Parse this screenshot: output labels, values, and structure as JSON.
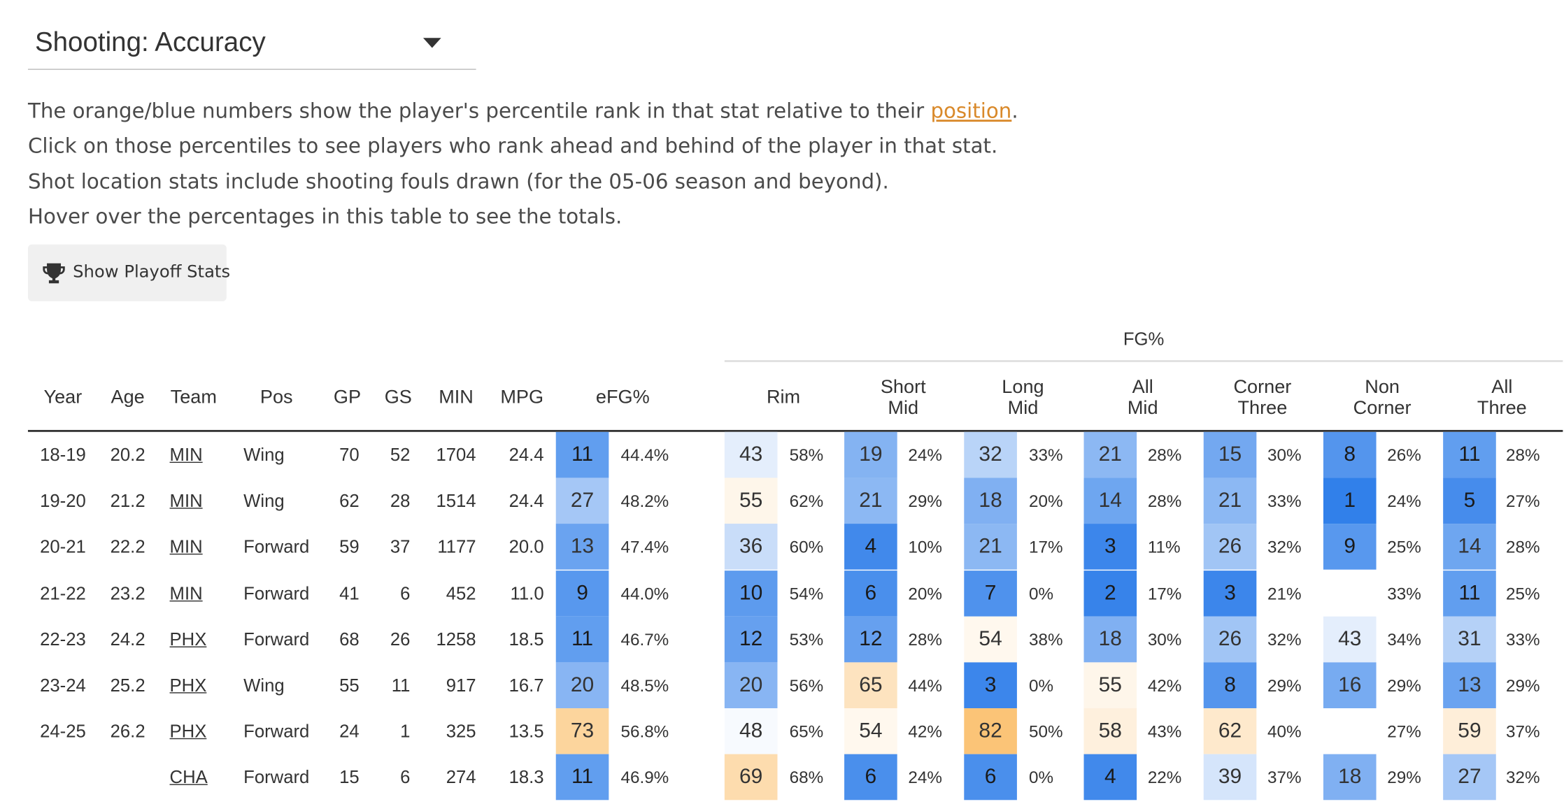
{
  "selector": {
    "label": "Shooting: Accuracy",
    "icon": "caret-down-icon"
  },
  "description": {
    "line1_prefix": "The orange/blue numbers show the player's percentile rank in that stat relative to their ",
    "line1_link": "position",
    "line1_suffix": ".",
    "line2": "Click on those percentiles to see players who rank ahead and behind of the player in that stat.",
    "line3": "Shot location stats include shooting fouls drawn (for the 05-06 season and beyond).",
    "line4": "Hover over the percentages in this table to see the totals."
  },
  "playoff_button": {
    "label": "Show Playoff Stats",
    "icon": "trophy-icon"
  },
  "table": {
    "group_header": "FG%",
    "columns": {
      "year": "Year",
      "age": "Age",
      "team": "Team",
      "pos": "Pos",
      "gp": "GP",
      "gs": "GS",
      "min": "MIN",
      "mpg": "MPG",
      "efg": "eFG%",
      "rim": "Rim",
      "short_mid_1": "Short",
      "short_mid_2": "Mid",
      "long_mid_1": "Long",
      "long_mid_2": "Mid",
      "all_mid_1": "All",
      "all_mid_2": "Mid",
      "corner_three_1": "Corner",
      "corner_three_2": "Three",
      "non_corner_1": "Non",
      "non_corner_2": "Corner",
      "all_three_1": "All",
      "all_three_2": "Three"
    },
    "rows": [
      {
        "year": "18-19",
        "age": "20.2",
        "team": "MIN",
        "pos": "Wing",
        "gp": "70",
        "gs": "52",
        "min": "1704",
        "mpg": "24.4",
        "stats": [
          {
            "rank": "11",
            "pct": "44.4%"
          },
          {
            "rank": "43",
            "pct": "58%"
          },
          {
            "rank": "19",
            "pct": "24%"
          },
          {
            "rank": "32",
            "pct": "33%"
          },
          {
            "rank": "21",
            "pct": "28%"
          },
          {
            "rank": "15",
            "pct": "30%"
          },
          {
            "rank": "8",
            "pct": "26%"
          },
          {
            "rank": "11",
            "pct": "28%"
          }
        ]
      },
      {
        "year": "19-20",
        "age": "21.2",
        "team": "MIN",
        "pos": "Wing",
        "gp": "62",
        "gs": "28",
        "min": "1514",
        "mpg": "24.4",
        "stats": [
          {
            "rank": "27",
            "pct": "48.2%"
          },
          {
            "rank": "55",
            "pct": "62%"
          },
          {
            "rank": "21",
            "pct": "29%"
          },
          {
            "rank": "18",
            "pct": "20%"
          },
          {
            "rank": "14",
            "pct": "28%"
          },
          {
            "rank": "21",
            "pct": "33%"
          },
          {
            "rank": "1",
            "pct": "24%"
          },
          {
            "rank": "5",
            "pct": "27%"
          }
        ]
      },
      {
        "year": "20-21",
        "age": "22.2",
        "team": "MIN",
        "pos": "Forward",
        "gp": "59",
        "gs": "37",
        "min": "1177",
        "mpg": "20.0",
        "stats": [
          {
            "rank": "13",
            "pct": "47.4%"
          },
          {
            "rank": "36",
            "pct": "60%"
          },
          {
            "rank": "4",
            "pct": "10%"
          },
          {
            "rank": "21",
            "pct": "17%"
          },
          {
            "rank": "3",
            "pct": "11%"
          },
          {
            "rank": "26",
            "pct": "32%"
          },
          {
            "rank": "9",
            "pct": "25%"
          },
          {
            "rank": "14",
            "pct": "28%"
          }
        ]
      },
      {
        "year": "21-22",
        "age": "23.2",
        "team": "MIN",
        "pos": "Forward",
        "gp": "41",
        "gs": "6",
        "min": "452",
        "mpg": "11.0",
        "stats": [
          {
            "rank": "9",
            "pct": "44.0%"
          },
          {
            "rank": "10",
            "pct": "54%"
          },
          {
            "rank": "6",
            "pct": "20%"
          },
          {
            "rank": "7",
            "pct": "0%"
          },
          {
            "rank": "2",
            "pct": "17%"
          },
          {
            "rank": "3",
            "pct": "21%"
          },
          {
            "rank": "",
            "pct": "33%"
          },
          {
            "rank": "11",
            "pct": "25%"
          }
        ]
      },
      {
        "year": "22-23",
        "age": "24.2",
        "team": "PHX",
        "pos": "Forward",
        "gp": "68",
        "gs": "26",
        "min": "1258",
        "mpg": "18.5",
        "stats": [
          {
            "rank": "11",
            "pct": "46.7%"
          },
          {
            "rank": "12",
            "pct": "53%"
          },
          {
            "rank": "12",
            "pct": "28%"
          },
          {
            "rank": "54",
            "pct": "38%"
          },
          {
            "rank": "18",
            "pct": "30%"
          },
          {
            "rank": "26",
            "pct": "32%"
          },
          {
            "rank": "43",
            "pct": "34%"
          },
          {
            "rank": "31",
            "pct": "33%"
          }
        ]
      },
      {
        "year": "23-24",
        "age": "25.2",
        "team": "PHX",
        "pos": "Wing",
        "gp": "55",
        "gs": "11",
        "min": "917",
        "mpg": "16.7",
        "stats": [
          {
            "rank": "20",
            "pct": "48.5%"
          },
          {
            "rank": "20",
            "pct": "56%"
          },
          {
            "rank": "65",
            "pct": "44%"
          },
          {
            "rank": "3",
            "pct": "0%"
          },
          {
            "rank": "55",
            "pct": "42%"
          },
          {
            "rank": "8",
            "pct": "29%"
          },
          {
            "rank": "16",
            "pct": "29%"
          },
          {
            "rank": "13",
            "pct": "29%"
          }
        ]
      },
      {
        "year": "24-25",
        "age": "26.2",
        "team": "PHX",
        "pos": "Forward",
        "gp": "24",
        "gs": "1",
        "min": "325",
        "mpg": "13.5",
        "stats": [
          {
            "rank": "73",
            "pct": "56.8%"
          },
          {
            "rank": "48",
            "pct": "65%"
          },
          {
            "rank": "54",
            "pct": "42%"
          },
          {
            "rank": "82",
            "pct": "50%"
          },
          {
            "rank": "58",
            "pct": "43%"
          },
          {
            "rank": "62",
            "pct": "40%"
          },
          {
            "rank": "",
            "pct": "27%"
          },
          {
            "rank": "59",
            "pct": "37%"
          }
        ]
      },
      {
        "year": "",
        "age": "",
        "team": "CHA",
        "pos": "Forward",
        "gp": "15",
        "gs": "6",
        "min": "274",
        "mpg": "18.3",
        "stats": [
          {
            "rank": "11",
            "pct": "46.9%"
          },
          {
            "rank": "69",
            "pct": "68%"
          },
          {
            "rank": "6",
            "pct": "24%"
          },
          {
            "rank": "6",
            "pct": "0%"
          },
          {
            "rank": "4",
            "pct": "22%"
          },
          {
            "rank": "39",
            "pct": "37%"
          },
          {
            "rank": "18",
            "pct": "29%"
          },
          {
            "rank": "27",
            "pct": "32%"
          }
        ]
      }
    ]
  }
}
